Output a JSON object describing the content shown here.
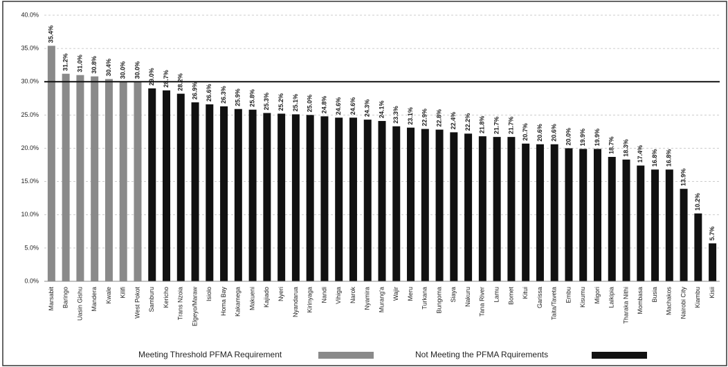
{
  "chart_data": {
    "type": "bar",
    "categories": [
      "Marsabit",
      "Baringo",
      "Uasin Gishu",
      "Mandera",
      "Kwale",
      "Kilifi",
      "West Pokot",
      "Samburu",
      "Kericho",
      "Trans Nzoia",
      "Elgeyo/Maraw",
      "Isiolo",
      "Homa Bay",
      "Kakamega",
      "Makueni",
      "Kajiado",
      "Nyeri",
      "Nyandarua",
      "Kirinyaga",
      "Nandi",
      "Vihiga",
      "Narok",
      "Nyamira",
      "Murang'a",
      "Wajir",
      "Meru",
      "Turkana",
      "Bungoma",
      "Siaya",
      "Nakuru",
      "Tana River",
      "Lamu",
      "Bomet",
      "Kitui",
      "Garissa",
      "Taita/Taveta",
      "Embu",
      "Kisumu",
      "Migori",
      "Laikipia",
      "Tharaka Nithi",
      "Mombasa",
      "Busia",
      "Machakos",
      "Nairobi City",
      "Kiambu",
      "Kisii"
    ],
    "values": [
      35.4,
      31.2,
      31.0,
      30.8,
      30.4,
      30.0,
      30.0,
      29.0,
      28.7,
      28.2,
      26.9,
      26.6,
      26.3,
      25.9,
      25.8,
      25.3,
      25.2,
      25.1,
      25.0,
      24.8,
      24.6,
      24.6,
      24.3,
      24.1,
      23.3,
      23.1,
      22.9,
      22.8,
      22.4,
      22.2,
      21.8,
      21.7,
      21.7,
      20.7,
      20.6,
      20.6,
      20.0,
      19.9,
      19.9,
      18.7,
      18.3,
      17.4,
      16.8,
      16.8,
      13.9,
      10.2,
      5.7
    ],
    "value_labels": [
      "35.4%",
      "31.2%",
      "31.0%",
      "30.8%",
      "30.4%",
      "30.0%",
      "30.0%",
      "29.0%",
      "28.7%",
      "28.2%",
      "26.9%",
      "26.6%",
      "26.3%",
      "25.9%",
      "25.8%",
      "25.3%",
      "25.2%",
      "25.1%",
      "25.0%",
      "24.8%",
      "24.6%",
      "24.6%",
      "24.3%",
      "24.1%",
      "23.3%",
      "23.1%",
      "22.9%",
      "22.8%",
      "22.4%",
      "22.2%",
      "21.8%",
      "21.7%",
      "21.7%",
      "20.7%",
      "20.6%",
      "20.6%",
      "20.0%",
      "19.9%",
      "19.9%",
      "18.7%",
      "18.3%",
      "17.4%",
      "16.8%",
      "16.8%",
      "13.9%",
      "10.2%",
      "5.7%"
    ],
    "colors": [
      "#8a8a8a",
      "#8a8a8a",
      "#8a8a8a",
      "#8a8a8a",
      "#8a8a8a",
      "#8a8a8a",
      "#8a8a8a",
      "#111111",
      "#111111",
      "#111111",
      "#111111",
      "#111111",
      "#111111",
      "#111111",
      "#111111",
      "#111111",
      "#111111",
      "#111111",
      "#111111",
      "#111111",
      "#111111",
      "#111111",
      "#111111",
      "#111111",
      "#111111",
      "#111111",
      "#111111",
      "#111111",
      "#111111",
      "#111111",
      "#111111",
      "#111111",
      "#111111",
      "#111111",
      "#111111",
      "#111111",
      "#111111",
      "#111111",
      "#111111",
      "#111111",
      "#111111",
      "#111111",
      "#111111",
      "#111111",
      "#111111",
      "#111111",
      "#111111"
    ],
    "legend": [
      {
        "name": "Meeting Threshold PFMA Requirement",
        "color": "#8a8a8a"
      },
      {
        "name": "Not Meeting the PFMA Rquirements",
        "color": "#111111"
      }
    ],
    "threshold": 30,
    "ylim": [
      0,
      40
    ],
    "yticks": [
      {
        "value": 0,
        "label": "0.0%"
      },
      {
        "value": 5,
        "label": "5.0%"
      },
      {
        "value": 10,
        "label": "10.0%"
      },
      {
        "value": 15,
        "label": "15.0%"
      },
      {
        "value": 20,
        "label": "20.0%"
      },
      {
        "value": 25,
        "label": "25.0%"
      },
      {
        "value": 30,
        "label": "30.0%"
      },
      {
        "value": 35,
        "label": "35.0%"
      },
      {
        "value": 40,
        "label": "40.0%"
      }
    ],
    "grid": true
  }
}
